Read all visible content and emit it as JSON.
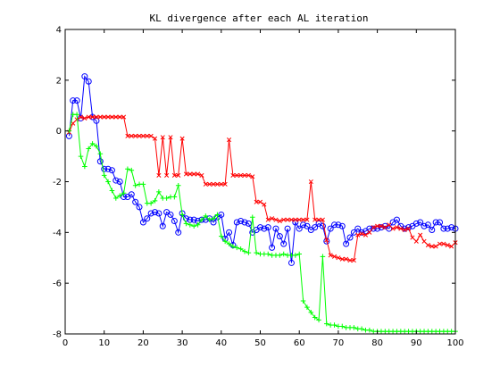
{
  "chart_data": {
    "type": "line",
    "title": "KL divergence after each AL iteration",
    "xlabel": "",
    "ylabel": "",
    "xlim": [
      0,
      100
    ],
    "ylim": [
      -8,
      4
    ],
    "xticks": [
      0,
      10,
      20,
      30,
      40,
      50,
      60,
      70,
      80,
      90,
      100
    ],
    "yticks": [
      4,
      2,
      0,
      -2,
      -4,
      -6,
      -8
    ],
    "grid": false,
    "legend": "none",
    "series": [
      {
        "color": "#0000ff",
        "marker": "circle",
        "x": [
          1,
          2,
          3,
          4,
          5,
          6,
          7,
          8,
          9,
          10,
          11,
          12,
          13,
          14,
          15,
          16,
          17,
          18,
          19,
          20,
          21,
          22,
          23,
          24,
          25,
          26,
          27,
          28,
          29,
          30,
          31,
          32,
          33,
          34,
          35,
          36,
          37,
          38,
          39,
          40,
          41,
          42,
          43,
          44,
          45,
          46,
          47,
          48,
          49,
          50,
          51,
          52,
          53,
          54,
          55,
          56,
          57,
          58,
          59,
          60,
          61,
          62,
          63,
          64,
          65,
          66,
          67,
          68,
          69,
          70,
          71,
          72,
          73,
          74,
          75,
          76,
          77,
          78,
          79,
          80,
          81,
          82,
          83,
          84,
          85,
          86,
          87,
          88,
          89,
          90,
          91,
          92,
          93,
          94,
          95,
          96,
          97,
          98,
          99,
          100
        ],
        "y": [
          -0.2,
          1.2,
          1.2,
          0.5,
          2.15,
          1.95,
          0.55,
          0.4,
          -1.2,
          -1.5,
          -1.5,
          -1.55,
          -1.95,
          -2.0,
          -2.6,
          -2.6,
          -2.5,
          -2.8,
          -3.0,
          -3.6,
          -3.45,
          -3.25,
          -3.2,
          -3.25,
          -3.75,
          -3.2,
          -3.3,
          -3.55,
          -4.0,
          -3.25,
          -3.45,
          -3.5,
          -3.5,
          -3.55,
          -3.5,
          -3.5,
          -3.45,
          -3.6,
          -3.4,
          -3.3,
          -4.25,
          -4.0,
          -4.5,
          -3.6,
          -3.55,
          -3.6,
          -3.65,
          -4.0,
          -3.9,
          -3.8,
          -3.85,
          -3.8,
          -4.6,
          -3.85,
          -4.15,
          -4.45,
          -3.85,
          -5.2,
          -3.6,
          -3.85,
          -3.7,
          -3.75,
          -3.9,
          -3.8,
          -3.65,
          -3.75,
          -4.35,
          -3.85,
          -3.7,
          -3.7,
          -3.75,
          -4.45,
          -4.2,
          -4.0,
          -3.85,
          -4.0,
          -3.95,
          -3.85,
          -3.85,
          -3.85,
          -3.8,
          -3.75,
          -3.85,
          -3.6,
          -3.5,
          -3.75,
          -3.85,
          -3.8,
          -3.75,
          -3.65,
          -3.6,
          -3.75,
          -3.7,
          -3.9,
          -3.6,
          -3.6,
          -3.85,
          -3.85,
          -3.8,
          -3.85
        ]
      },
      {
        "color": "#ff0000",
        "marker": "x",
        "x": [
          1,
          2,
          3,
          4,
          5,
          6,
          7,
          8,
          9,
          10,
          11,
          12,
          13,
          14,
          15,
          16,
          17,
          18,
          19,
          20,
          21,
          22,
          23,
          24,
          25,
          26,
          27,
          28,
          29,
          30,
          31,
          32,
          33,
          34,
          35,
          36,
          37,
          38,
          39,
          40,
          41,
          42,
          43,
          44,
          45,
          46,
          47,
          48,
          49,
          50,
          51,
          52,
          53,
          54,
          55,
          56,
          57,
          58,
          59,
          60,
          61,
          62,
          63,
          64,
          65,
          66,
          67,
          68,
          69,
          70,
          71,
          72,
          73,
          74,
          75,
          76,
          77,
          78,
          79,
          80,
          81,
          82,
          83,
          84,
          85,
          86,
          87,
          88,
          89,
          90,
          91,
          92,
          93,
          94,
          95,
          96,
          97,
          98,
          99,
          100
        ],
        "y": [
          -0.05,
          0.3,
          0.45,
          0.55,
          0.5,
          0.55,
          0.55,
          0.55,
          0.55,
          0.55,
          0.55,
          0.55,
          0.55,
          0.55,
          0.55,
          -0.2,
          -0.2,
          -0.2,
          -0.2,
          -0.2,
          -0.2,
          -0.2,
          -0.3,
          -1.75,
          -0.25,
          -1.75,
          -0.25,
          -1.75,
          -1.75,
          -0.3,
          -1.7,
          -1.7,
          -1.7,
          -1.7,
          -1.75,
          -2.1,
          -2.1,
          -2.1,
          -2.1,
          -2.1,
          -2.1,
          -0.35,
          -1.75,
          -1.75,
          -1.75,
          -1.75,
          -1.75,
          -1.8,
          -2.8,
          -2.8,
          -2.9,
          -3.5,
          -3.45,
          -3.5,
          -3.55,
          -3.5,
          -3.5,
          -3.5,
          -3.5,
          -3.5,
          -3.5,
          -3.5,
          -2.0,
          -3.5,
          -3.5,
          -3.5,
          -4.3,
          -4.9,
          -4.95,
          -5.0,
          -5.05,
          -5.05,
          -5.1,
          -5.1,
          -4.1,
          -4.05,
          -4.1,
          -4.0,
          -3.8,
          -3.75,
          -3.75,
          -3.8,
          -3.7,
          -3.85,
          -3.8,
          -3.85,
          -3.9,
          -3.85,
          -4.2,
          -4.35,
          -4.1,
          -4.35,
          -4.5,
          -4.55,
          -4.55,
          -4.45,
          -4.45,
          -4.5,
          -4.55,
          -4.4
        ]
      },
      {
        "color": "#00ff00",
        "marker": "plus",
        "x": [
          1,
          2,
          3,
          4,
          5,
          6,
          7,
          8,
          9,
          10,
          11,
          12,
          13,
          14,
          15,
          16,
          17,
          18,
          19,
          20,
          21,
          22,
          23,
          24,
          25,
          26,
          27,
          28,
          29,
          30,
          31,
          32,
          33,
          34,
          35,
          36,
          37,
          38,
          39,
          40,
          41,
          42,
          43,
          44,
          45,
          46,
          47,
          48,
          49,
          50,
          51,
          52,
          53,
          54,
          55,
          56,
          57,
          58,
          59,
          60,
          61,
          62,
          63,
          64,
          65,
          66,
          67,
          68,
          69,
          70,
          71,
          72,
          73,
          74,
          75,
          76,
          77,
          78,
          79,
          80,
          81,
          82,
          83,
          84,
          85,
          86,
          87,
          88,
          89,
          90,
          91,
          92,
          93,
          94,
          95,
          96,
          97,
          98,
          99,
          100
        ],
        "y": [
          0.0,
          0.65,
          0.65,
          -1.0,
          -1.4,
          -0.7,
          -0.5,
          -0.6,
          -0.9,
          -1.75,
          -2.0,
          -2.35,
          -2.65,
          -2.55,
          -2.45,
          -1.5,
          -1.55,
          -2.15,
          -2.1,
          -2.1,
          -2.85,
          -2.85,
          -2.75,
          -2.4,
          -2.65,
          -2.65,
          -2.6,
          -2.6,
          -2.15,
          -3.3,
          -3.65,
          -3.7,
          -3.75,
          -3.7,
          -3.5,
          -3.35,
          -3.5,
          -3.45,
          -3.3,
          -4.15,
          -4.35,
          -4.45,
          -4.55,
          -4.6,
          -4.65,
          -4.75,
          -4.8,
          -3.4,
          -4.8,
          -4.85,
          -4.85,
          -4.85,
          -4.9,
          -4.9,
          -4.9,
          -4.85,
          -4.9,
          -4.9,
          -4.9,
          -4.85,
          -6.7,
          -6.95,
          -7.15,
          -7.35,
          -7.45,
          -4.95,
          -7.6,
          -7.65,
          -7.65,
          -7.7,
          -7.7,
          -7.75,
          -7.75,
          -7.75,
          -7.8,
          -7.8,
          -7.85,
          -7.85,
          -7.9,
          -7.9,
          -7.9,
          -7.9,
          -7.9,
          -7.9,
          -7.9,
          -7.9,
          -7.9,
          -7.9,
          -7.9,
          -7.9,
          -7.9,
          -7.9,
          -7.9,
          -7.9,
          -7.9,
          -7.9,
          -7.9,
          -7.9,
          -7.9,
          -7.9
        ]
      }
    ]
  }
}
